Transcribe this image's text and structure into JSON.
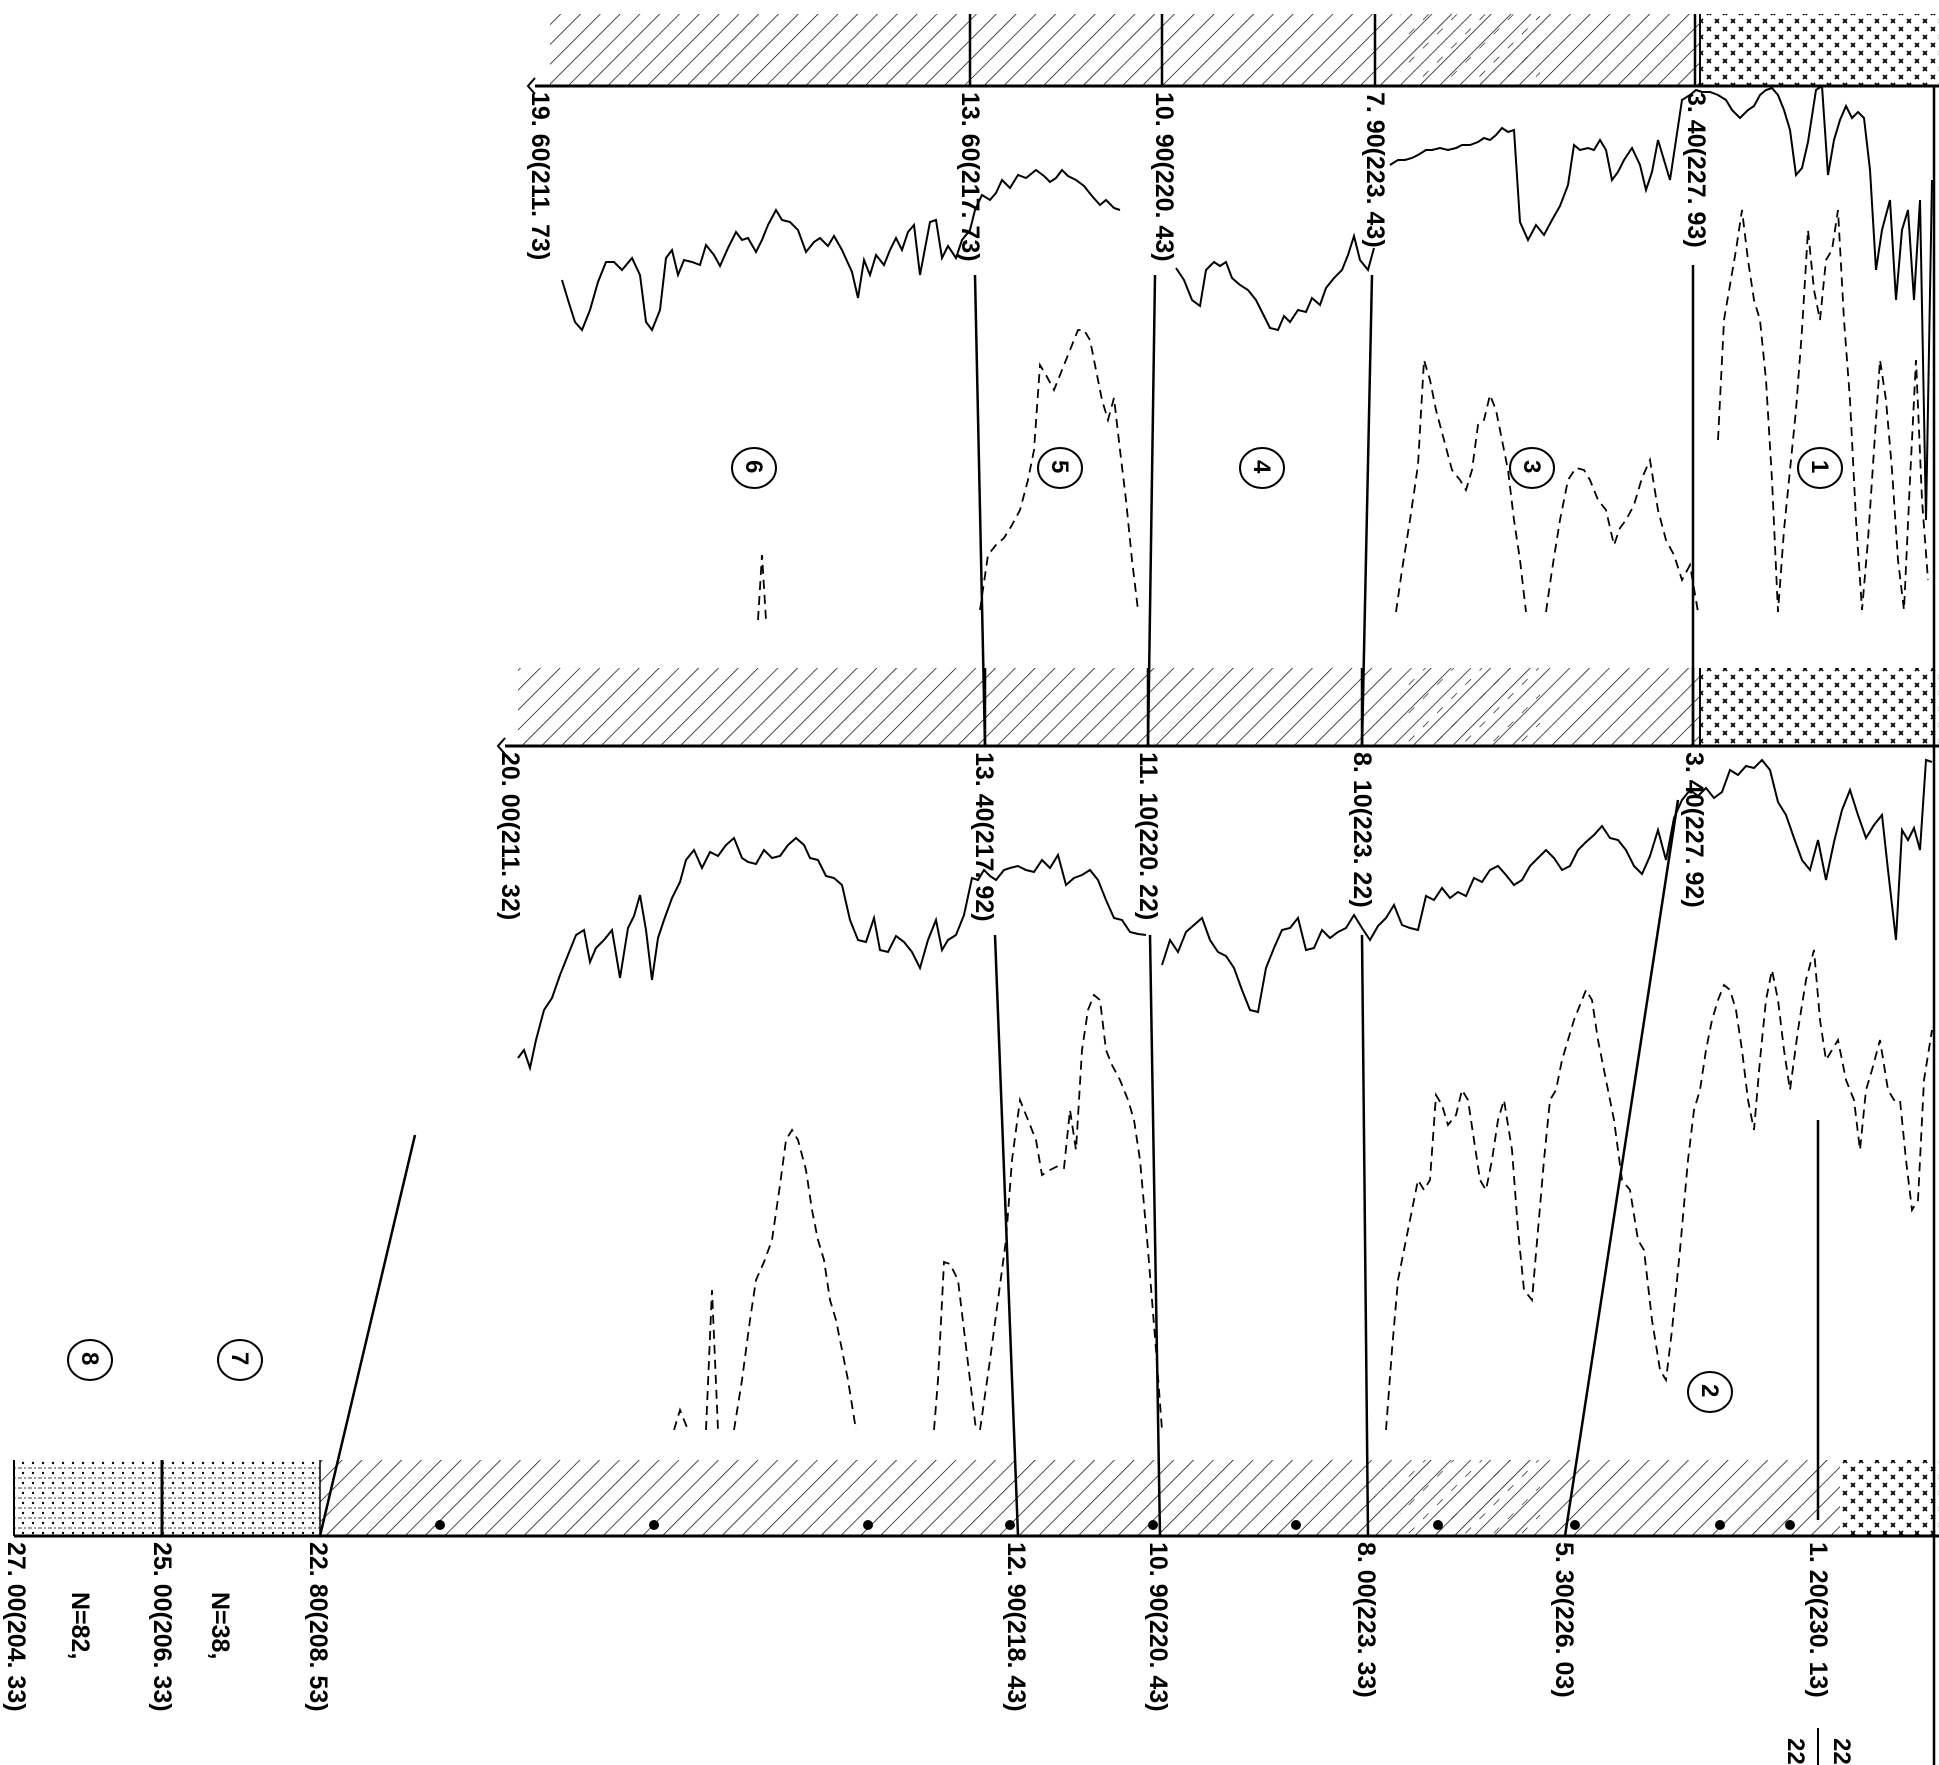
{
  "columns": [
    {
      "id": "left",
      "top_labels": [
        "19. 60(211. 73)",
        "13. 60(217. 73)",
        "10. 90(220. 43)",
        "7. 90(223. 43)",
        "3. 40(227. 93)"
      ]
    },
    {
      "id": "middle",
      "top_labels": [
        "20. 00(211. 32)",
        "13. 40(217. 92)",
        "11. 10(220. 22)",
        "8. 10(223. 22)",
        "3. 40(227. 92)"
      ]
    },
    {
      "id": "right",
      "depth_labels": [
        "27. 00(204. 33)",
        "25. 00(206. 33)",
        "22. 80(208. 53)",
        "12. 90(218. 43)",
        "10. 90(220. 43)",
        "8. 00(223. 33)",
        "5. 30(226. 03)",
        "1. 20(230. 13)"
      ],
      "counts": [
        "N=82,",
        "N=38,"
      ],
      "edge_numbers": [
        "22",
        "22"
      ]
    }
  ],
  "layer_numbers": [
    "1",
    "2",
    "3",
    "4",
    "5",
    "6",
    "7",
    "8"
  ]
}
